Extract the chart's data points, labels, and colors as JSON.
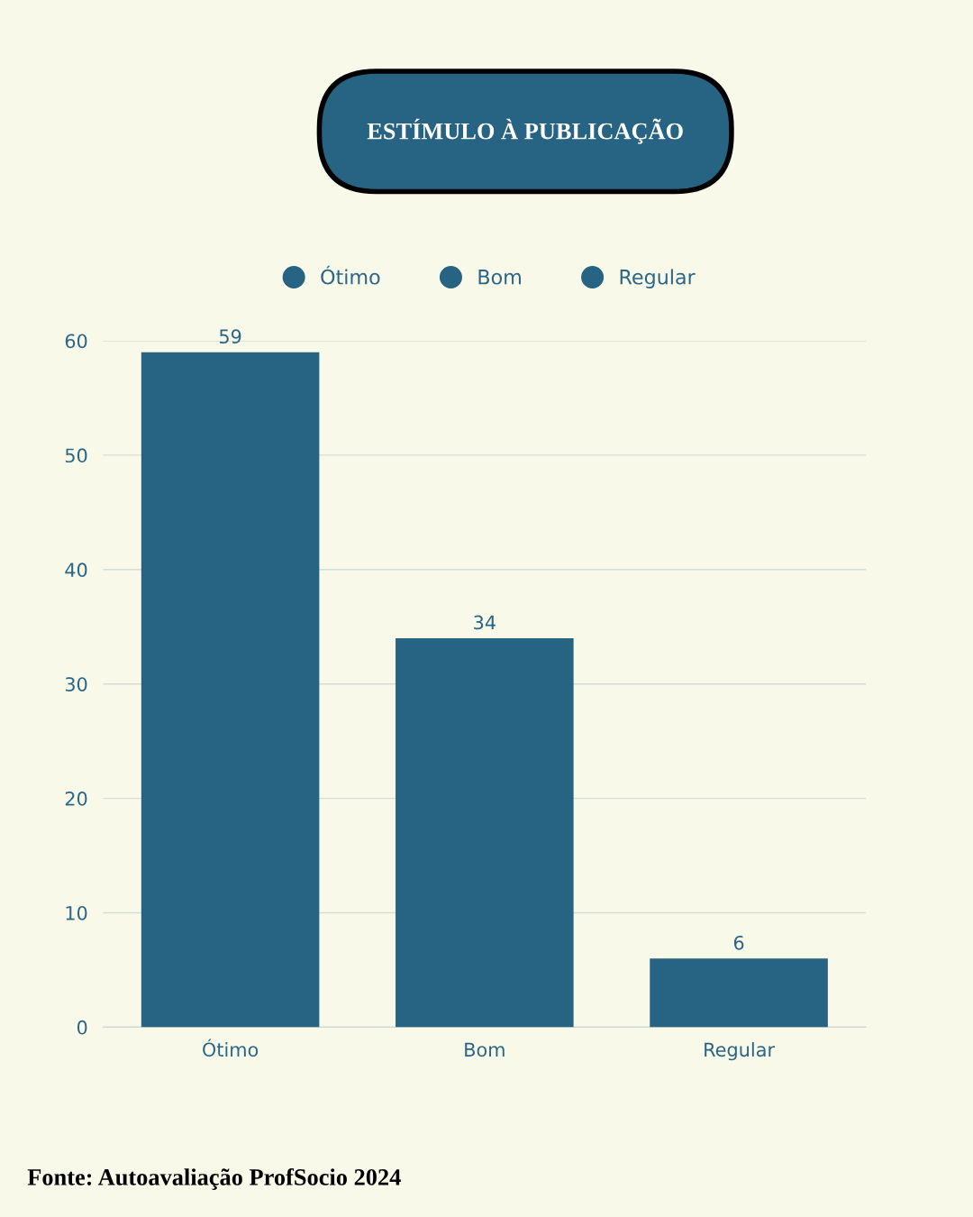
{
  "chart_data": {
    "type": "bar",
    "title": "ESTÍMULO À PUBLICAÇÃO",
    "categories": [
      "Ótimo",
      "Bom",
      "Regular"
    ],
    "series": [
      {
        "name": "Ótimo",
        "color": "#276382",
        "values": [
          59,
          null,
          null
        ]
      },
      {
        "name": "Bom",
        "color": "#276382",
        "values": [
          null,
          34,
          null
        ]
      },
      {
        "name": "Regular",
        "color": "#276382",
        "values": [
          null,
          null,
          6
        ]
      }
    ],
    "ylim": [
      0,
      60
    ],
    "yticks": [
      0,
      10,
      20,
      30,
      40,
      50,
      60
    ],
    "grid": "y",
    "legend": "top",
    "data_labels": true,
    "annotations": [
      "Fonte: Autoavaliação ProfSocio 2024"
    ]
  }
}
